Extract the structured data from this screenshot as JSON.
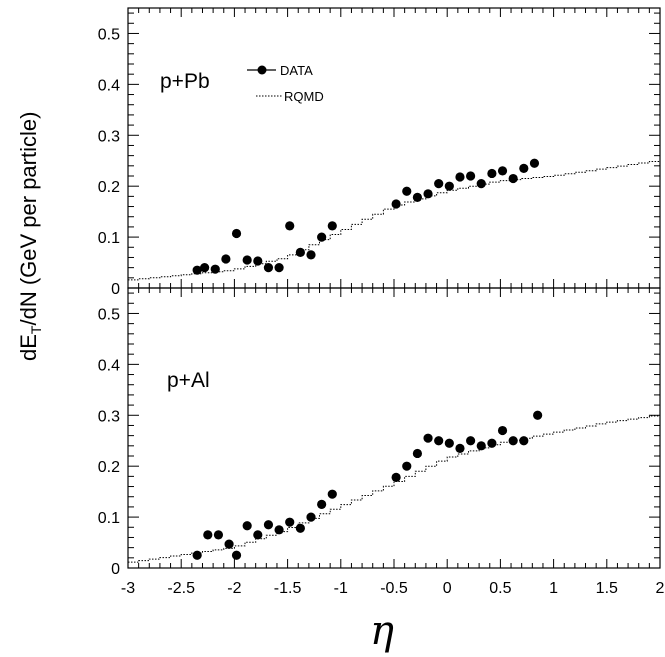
{
  "chart_data": {
    "type": "scatter",
    "xlabel": "η",
    "ylabel_main": "dE",
    "ylabel_sub": "T",
    "ylabel_rest": "/dN (GeV per particle)",
    "xlim": [
      -3,
      2
    ],
    "ylim": [
      0,
      0.55
    ],
    "x_ticks": [
      "-3",
      "-2.5",
      "-2",
      "-1.5",
      "-1",
      "-0.5",
      "0",
      "0.5",
      "1",
      "1.5",
      "2"
    ],
    "y_ticks": [
      "0",
      "0.1",
      "0.2",
      "0.3",
      "0.4",
      "0.5"
    ],
    "legend": {
      "data_label": "DATA",
      "model_label": "RQMD",
      "placement": "top-left of upper panel"
    },
    "panels": [
      {
        "label": "p+Pb",
        "data": {
          "x": [
            -2.35,
            -2.28,
            -2.18,
            -2.08,
            -1.98,
            -1.88,
            -1.78,
            -1.68,
            -1.58,
            -1.48,
            -1.38,
            -1.28,
            -1.18,
            -1.08,
            -0.48,
            -0.38,
            -0.28,
            -0.18,
            -0.08,
            0.02,
            0.12,
            0.22,
            0.32,
            0.42,
            0.52,
            0.62,
            0.72,
            0.82
          ],
          "y": [
            0.035,
            0.04,
            0.037,
            0.057,
            0.107,
            0.055,
            0.053,
            0.04,
            0.04,
            0.122,
            0.07,
            0.065,
            0.1,
            0.122,
            0.165,
            0.19,
            0.178,
            0.185,
            0.205,
            0.2,
            0.218,
            0.22,
            0.205,
            0.225,
            0.23,
            0.215,
            0.235,
            0.245
          ]
        },
        "model": {
          "x": [
            -3.0,
            -2.5,
            -2.0,
            -1.5,
            -1.0,
            -0.5,
            0.0,
            0.5,
            1.0,
            1.5,
            2.0
          ],
          "y": [
            0.015,
            0.025,
            0.035,
            0.06,
            0.11,
            0.16,
            0.19,
            0.21,
            0.22,
            0.235,
            0.25
          ]
        }
      },
      {
        "label": "p+Al",
        "data": {
          "x": [
            -2.35,
            -2.25,
            -2.15,
            -2.05,
            -1.98,
            -1.88,
            -1.78,
            -1.68,
            -1.58,
            -1.48,
            -1.38,
            -1.28,
            -1.18,
            -1.08,
            -0.48,
            -0.38,
            -0.28,
            -0.18,
            -0.08,
            0.02,
            0.12,
            0.22,
            0.32,
            0.42,
            0.52,
            0.62,
            0.72,
            0.85
          ],
          "y": [
            0.025,
            0.065,
            0.065,
            0.047,
            0.025,
            0.083,
            0.065,
            0.085,
            0.075,
            0.09,
            0.078,
            0.1,
            0.125,
            0.145,
            0.178,
            0.2,
            0.225,
            0.255,
            0.25,
            0.245,
            0.235,
            0.25,
            0.24,
            0.245,
            0.27,
            0.25,
            0.25,
            0.3
          ]
        },
        "model": {
          "x": [
            -3.0,
            -2.5,
            -2.0,
            -1.5,
            -1.0,
            -0.5,
            0.0,
            0.5,
            1.0,
            1.5,
            2.0
          ],
          "y": [
            0.01,
            0.025,
            0.04,
            0.075,
            0.12,
            0.165,
            0.215,
            0.245,
            0.265,
            0.285,
            0.3
          ]
        }
      }
    ],
    "colors": {
      "axis": "#000000",
      "data": "#000000",
      "model": "#000000"
    }
  }
}
